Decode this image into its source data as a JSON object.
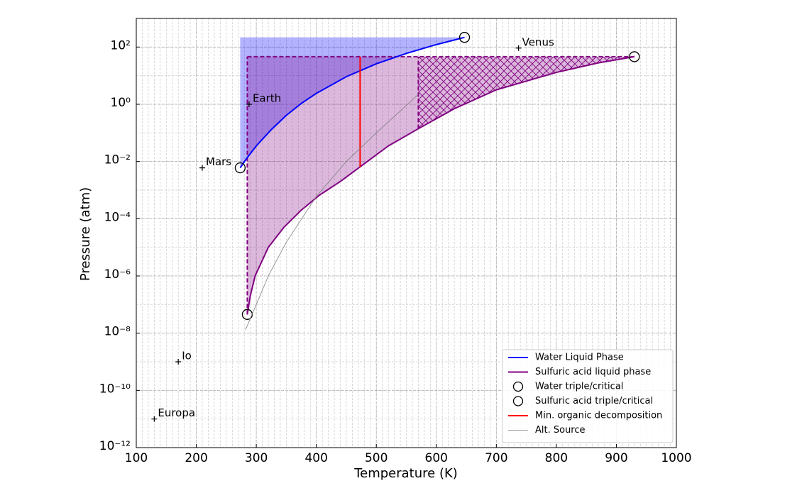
{
  "chart_data": {
    "type": "line",
    "xlabel": "Temperature (K)",
    "ylabel": "Pressure (atm)",
    "xlim": [
      100,
      1000
    ],
    "ylim": [
      1e-12,
      1000
    ],
    "yscale": "log",
    "xticks": [
      100,
      200,
      300,
      400,
      500,
      600,
      700,
      800,
      900,
      1000
    ],
    "yticks": [
      {
        "value": 1e-12,
        "label": "10⁻¹²"
      },
      {
        "value": 1e-10,
        "label": "10⁻¹⁰"
      },
      {
        "value": 1e-08,
        "label": "10⁻⁸"
      },
      {
        "value": 1e-06,
        "label": "10⁻⁶"
      },
      {
        "value": 0.0001,
        "label": "10⁻⁴"
      },
      {
        "value": 0.01,
        "label": "10⁻²"
      },
      {
        "value": 1,
        "label": "10⁰"
      },
      {
        "value": 100,
        "label": "10²"
      }
    ],
    "grid": true,
    "legend": "lower right",
    "series": [
      {
        "name": "Water Liquid Phase",
        "kind": "line",
        "color": "#0000ff",
        "fill_color": "rgba(0,0,255,0.3)",
        "x": [
          273.16,
          285,
          300,
          325,
          350,
          375,
          400,
          450,
          500,
          550,
          600,
          647
        ],
        "values": [
          0.006,
          0.0137,
          0.035,
          0.13,
          0.41,
          1.07,
          2.4,
          9.2,
          26,
          60,
          122,
          218
        ]
      },
      {
        "name": "Sulfuric acid liquid phase",
        "kind": "line",
        "color": "#800080",
        "fill_color": "rgba(128,0,128,0.28)",
        "hatch_from": 570,
        "x": [
          285,
          290,
          298,
          320,
          346,
          375,
          405,
          440,
          473,
          520,
          570,
          630,
          700,
          800,
          870,
          930
        ],
        "values": [
          4.5e-08,
          2e-07,
          1e-06,
          1e-05,
          5e-05,
          0.0002,
          0.00066,
          0.002,
          0.0065,
          0.035,
          0.14,
          0.7,
          3.2,
          13,
          28,
          46
        ]
      },
      {
        "name": "Water triple/critical",
        "kind": "marker",
        "color": "#000000",
        "x": [
          273.16,
          647
        ],
        "values": [
          0.006,
          218
        ]
      },
      {
        "name": "Sulfuric acid triple/critical",
        "kind": "marker",
        "color": "#000000",
        "x": [
          285,
          930
        ],
        "values": [
          4.5e-08,
          46
        ]
      },
      {
        "name": "Min. organic decomposition",
        "kind": "line",
        "color": "#ff0000",
        "x": [
          473,
          473
        ],
        "values": [
          0.0065,
          46
        ]
      },
      {
        "name": "Alt. Source",
        "kind": "thin",
        "color": "#808080",
        "x": [
          282,
          300,
          320,
          350,
          400,
          450,
          500,
          570
        ],
        "values": [
          1.3e-08,
          1e-07,
          1e-06,
          1.5e-05,
          0.0006,
          0.01,
          0.1,
          2.2
        ]
      }
    ],
    "planets": [
      {
        "label": "Venus",
        "x": 737,
        "y": 92
      },
      {
        "label": "Earth",
        "x": 288,
        "y": 1
      },
      {
        "label": "Mars",
        "x": 210,
        "y": 0.006
      },
      {
        "label": "Io",
        "x": 170,
        "y": 1e-09
      },
      {
        "label": "Europa",
        "x": 130,
        "y": 1e-11
      }
    ]
  }
}
